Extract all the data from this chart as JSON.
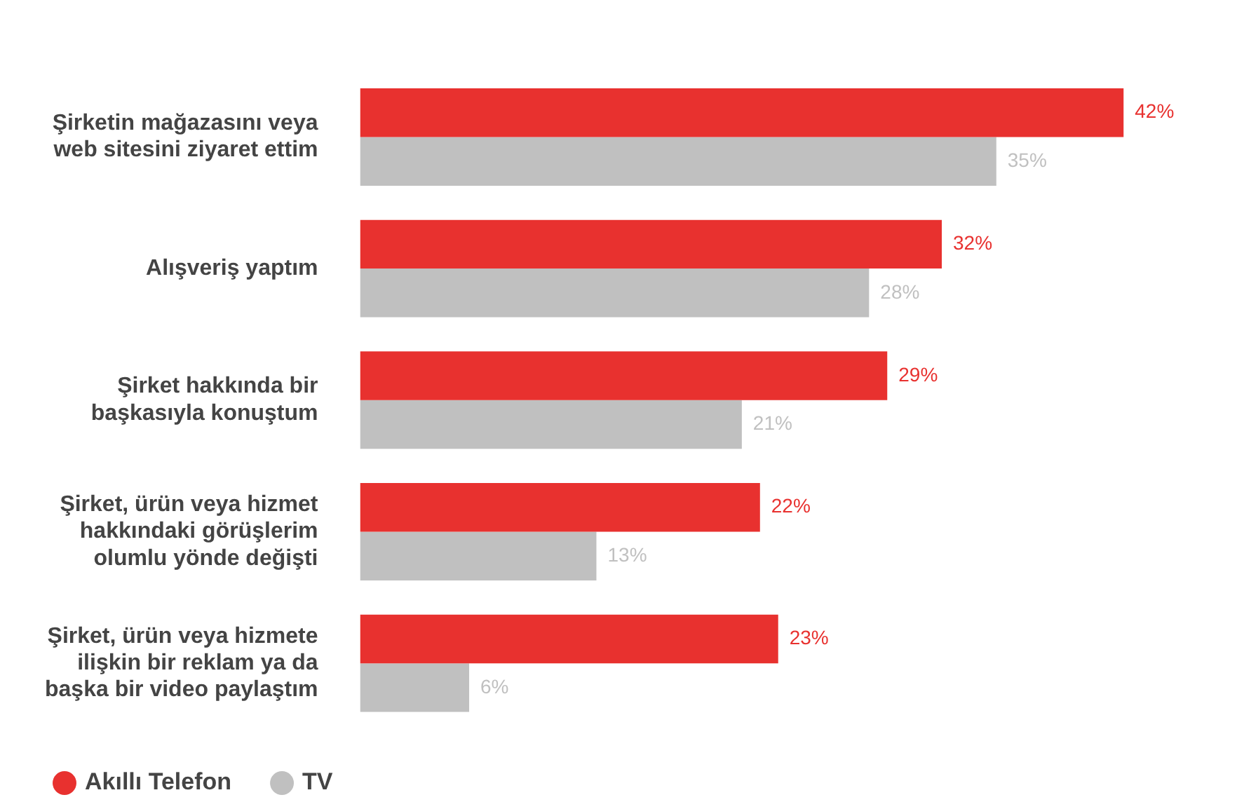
{
  "chart_data": {
    "type": "bar",
    "orientation": "horizontal",
    "categories": [
      "Şirketin mağazasını veya web sitesini ziyaret ettim",
      "Alışveriş yaptım",
      "Şirket hakkında bir başkasıyla konuştum",
      "Şirket, ürün veya hizmet hakkındaki görüşlerim olumlu yönde değişti",
      "Şirket, ürün veya hizmete ilişkin bir reklam ya da başka bir video paylaştım"
    ],
    "series": [
      {
        "name": "Akıllı Telefon",
        "color": "#e8312f",
        "values": [
          42,
          32,
          29,
          22,
          23
        ],
        "value_labels": [
          "42%",
          "32%",
          "29%",
          "22%",
          "23%"
        ]
      },
      {
        "name": "TV",
        "color": "#c0c0c0",
        "values": [
          35,
          28,
          21,
          13,
          6
        ],
        "value_labels": [
          "35%",
          "28%",
          "21%",
          "13%",
          "6%"
        ]
      }
    ],
    "legend": "bottom left",
    "grid": false
  }
}
